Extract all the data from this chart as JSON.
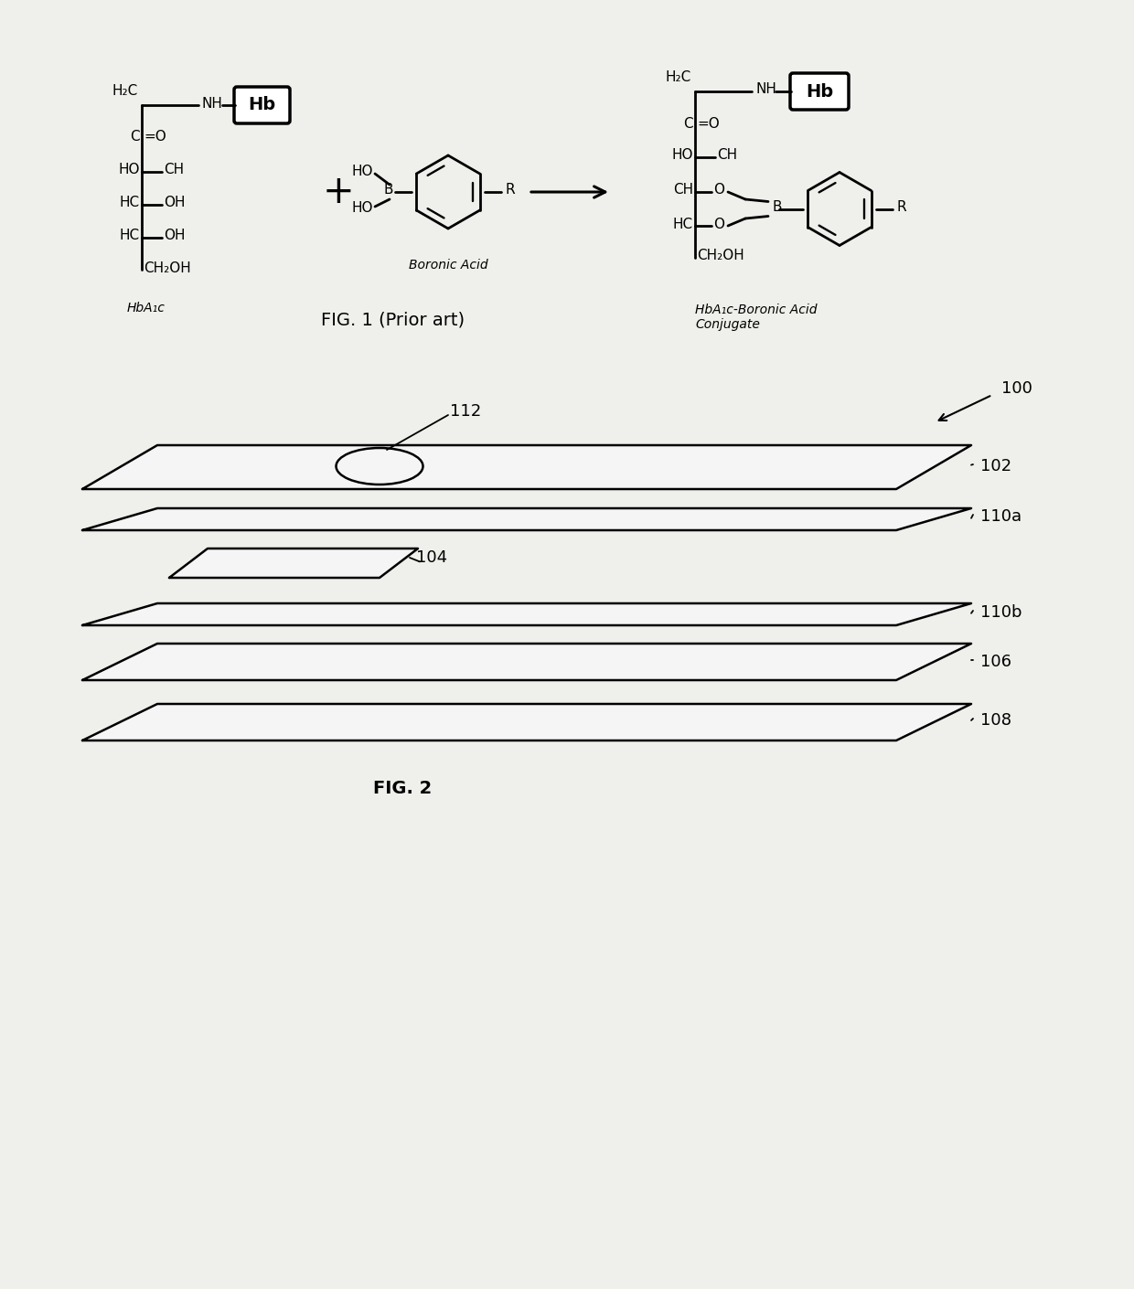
{
  "fig1_caption": "FIG. 1 (Prior art)",
  "fig2_caption": "FIG. 2",
  "background_color": "#efefeb",
  "label_100": "100",
  "label_102": "102",
  "label_104": "104",
  "label_106": "106",
  "label_108": "108",
  "label_110a": "110a",
  "label_110b": "110b",
  "label_112": "112",
  "hba1c_label": "HbA₁c",
  "boronic_acid_label": "Boronic Acid",
  "conjugate_label": "HbA₁c-Boronic Acid\nConjugate"
}
